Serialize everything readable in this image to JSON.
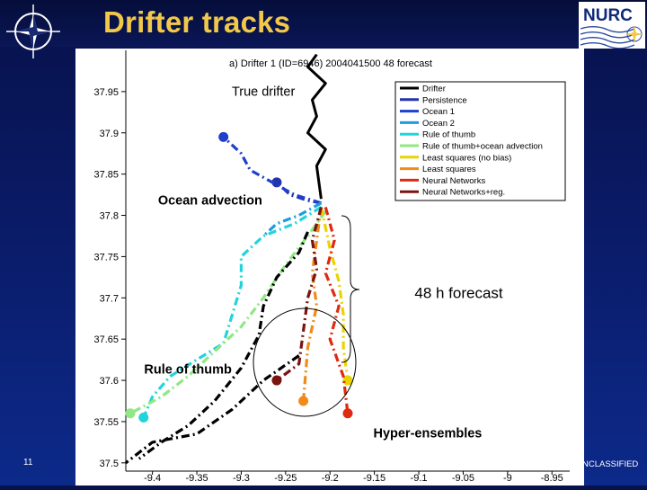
{
  "slide": {
    "title": "Drifter tracks",
    "number": "11",
    "classification": "NCLASSIFIED"
  },
  "icons": {
    "left_logo": "nato-compass-star-icon",
    "right_logo": "nurc-logo"
  },
  "logo_text": "NURC",
  "chart_data": {
    "type": "line",
    "title": "a) Drifter 1 (ID=6946) 2004041500 48 forecast",
    "xlabel": "",
    "ylabel": "",
    "xlim": [
      -9.43,
      -8.93
    ],
    "ylim": [
      37.49,
      38.0
    ],
    "x_ticks": [
      -9.4,
      -9.35,
      -9.3,
      -9.25,
      -9.2,
      -9.15,
      -9.1,
      -9.05,
      -9.0,
      -8.95
    ],
    "x_tick_labels": [
      "-9.4",
      "-9.35",
      "-9.3",
      "-9.25",
      "-9.2",
      "-9.15",
      "-9.1",
      "-9.05",
      "-9",
      "-8.95"
    ],
    "y_ticks": [
      37.5,
      37.55,
      37.6,
      37.65,
      37.7,
      37.75,
      37.8,
      37.85,
      37.9,
      37.95
    ],
    "y_tick_labels": [
      "37.5",
      "37.55",
      "37.6",
      "37.65",
      "37.7",
      "37.75",
      "37.8",
      "37.85",
      "37.9",
      "37.95"
    ],
    "grid": false,
    "legend_position": "top-right",
    "series": [
      {
        "name": "Drifter",
        "color": "#000000",
        "style": "solid",
        "end_marker": false,
        "x": [
          -9.215,
          -9.225,
          -9.205,
          -9.22,
          -9.215,
          -9.225,
          -9.205,
          -9.215,
          -9.21
        ],
        "y": [
          37.995,
          37.98,
          37.96,
          37.94,
          37.92,
          37.9,
          37.88,
          37.86,
          37.82
        ]
      },
      {
        "name": "Persistence",
        "color": "#2433a8",
        "style": "dashdot",
        "end_marker": true,
        "x": [
          -9.21,
          -9.225,
          -9.245,
          -9.26
        ],
        "y": [
          37.815,
          37.818,
          37.825,
          37.84
        ]
      },
      {
        "name": "Ocean 1",
        "color": "#1f3fcc",
        "style": "dashdot",
        "end_marker": true,
        "x": [
          -9.21,
          -9.24,
          -9.265,
          -9.29,
          -9.3,
          -9.32
        ],
        "y": [
          37.815,
          37.825,
          37.84,
          37.855,
          37.875,
          37.895
        ]
      },
      {
        "name": "Ocean 2",
        "color": "#1f9be0",
        "style": "dashdot",
        "end_marker": false,
        "x": [
          -9.21,
          -9.235,
          -9.26,
          -9.275
        ],
        "y": [
          37.815,
          37.8,
          37.79,
          37.775
        ]
      },
      {
        "name": "Rule of thumb",
        "color": "#21d4dc",
        "style": "dashdot",
        "end_marker": true,
        "x": [
          -9.21,
          -9.24,
          -9.275,
          -9.3,
          -9.3,
          -9.31,
          -9.32,
          -9.35,
          -9.38,
          -9.4,
          -9.41
        ],
        "y": [
          37.81,
          37.79,
          37.775,
          37.75,
          37.715,
          37.68,
          37.645,
          37.625,
          37.605,
          37.58,
          37.555
        ]
      },
      {
        "name": "Rule of thumb+ocean advection",
        "color": "#8fe882",
        "style": "dashdot",
        "end_marker": true,
        "x": [
          -9.205,
          -9.225,
          -9.25,
          -9.275,
          -9.3,
          -9.33,
          -9.36,
          -9.39,
          -9.425
        ],
        "y": [
          37.805,
          37.775,
          37.74,
          37.7,
          37.665,
          37.635,
          37.605,
          37.58,
          37.56
        ]
      },
      {
        "name": "Least squares (no bias)",
        "color": "#ead400",
        "style": "dashdot",
        "end_marker": true,
        "x": [
          -9.21,
          -9.2,
          -9.19,
          -9.185,
          -9.185,
          -9.18
        ],
        "y": [
          37.81,
          37.76,
          37.72,
          37.68,
          37.64,
          37.6
        ]
      },
      {
        "name": "Least squares",
        "color": "#f08a18",
        "style": "dashdot",
        "end_marker": true,
        "x": [
          -9.21,
          -9.215,
          -9.22,
          -9.215,
          -9.225,
          -9.23
        ],
        "y": [
          37.81,
          37.77,
          37.73,
          37.69,
          37.64,
          37.575
        ]
      },
      {
        "name": "Neural Networks",
        "color": "#dd2a10",
        "style": "dashdot",
        "end_marker": true,
        "x": [
          -9.205,
          -9.195,
          -9.205,
          -9.19,
          -9.2,
          -9.185,
          -9.18
        ],
        "y": [
          37.81,
          37.77,
          37.73,
          37.69,
          37.65,
          37.605,
          37.56
        ]
      },
      {
        "name": "Neural Networks+reg.",
        "color": "#7a1410",
        "style": "dashdot",
        "end_marker": true,
        "x": [
          -9.21,
          -9.22,
          -9.215,
          -9.225,
          -9.23,
          -9.235,
          -9.26
        ],
        "y": [
          37.81,
          37.77,
          37.735,
          37.7,
          37.66,
          37.62,
          37.6
        ]
      },
      {
        "name": "",
        "color": "#000000",
        "style": "dashdot",
        "end_marker": false,
        "x": [
          -9.225,
          -9.235,
          -9.26,
          -9.275,
          -9.28,
          -9.3,
          -9.33,
          -9.36,
          -9.39,
          -9.415
        ],
        "y": [
          37.78,
          37.755,
          37.725,
          37.69,
          37.655,
          37.615,
          37.575,
          37.545,
          37.525,
          37.505
        ]
      },
      {
        "name": "",
        "color": "#000000",
        "style": "dashdot",
        "end_marker": false,
        "x": [
          -9.235,
          -9.275,
          -9.31,
          -9.35,
          -9.4,
          -9.43
        ],
        "y": [
          37.63,
          37.6,
          37.565,
          37.535,
          37.525,
          37.5
        ]
      }
    ],
    "annotations": [
      {
        "text": "True drifter",
        "x": -9.275,
        "y": 37.945
      },
      {
        "text": "Ocean advection",
        "x": -9.335,
        "y": 37.813
      },
      {
        "text": "48 h forecast",
        "x": -9.055,
        "y": 37.7
      },
      {
        "text": "Rule of thumb",
        "x": -9.36,
        "y": 37.608
      },
      {
        "text": "Hyper-ensembles",
        "x": -9.09,
        "y": 37.531
      }
    ]
  }
}
